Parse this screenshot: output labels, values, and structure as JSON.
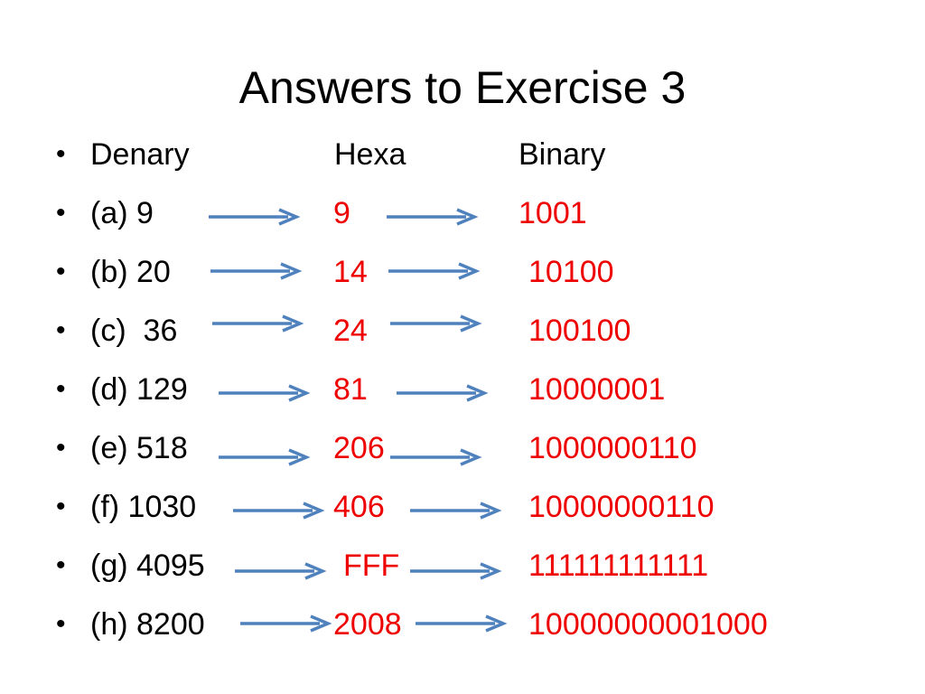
{
  "title": "Answers to Exercise 3",
  "header": {
    "denary": "Denary",
    "hexa": "Hexa",
    "binary": "Binary"
  },
  "rows": [
    {
      "label": "(a) 9",
      "hexa": "9",
      "binary": "1001"
    },
    {
      "label": "(b) 20",
      "hexa": "14",
      "binary": "10100"
    },
    {
      "label": "(c)  36",
      "hexa": "24",
      "binary": "100100"
    },
    {
      "label": "(d) 129",
      "hexa": "81",
      "binary": "10000001"
    },
    {
      "label": "(e) 518",
      "hexa": "206",
      "binary": "1000000110"
    },
    {
      "label": "(f) 1030",
      "hexa": "406",
      "binary": "10000000110"
    },
    {
      "label": "(g) 4095",
      "hexa": "FFF",
      "binary": "111111111111"
    },
    {
      "label": "(h) 8200",
      "hexa": "2008",
      "binary": "10000000001000"
    }
  ],
  "bullet": "•",
  "colors": {
    "answer": "#ee0000",
    "arrow": "#4f81bd",
    "text": "#000000"
  },
  "icons": {
    "arrow": "right-arrow-icon"
  }
}
